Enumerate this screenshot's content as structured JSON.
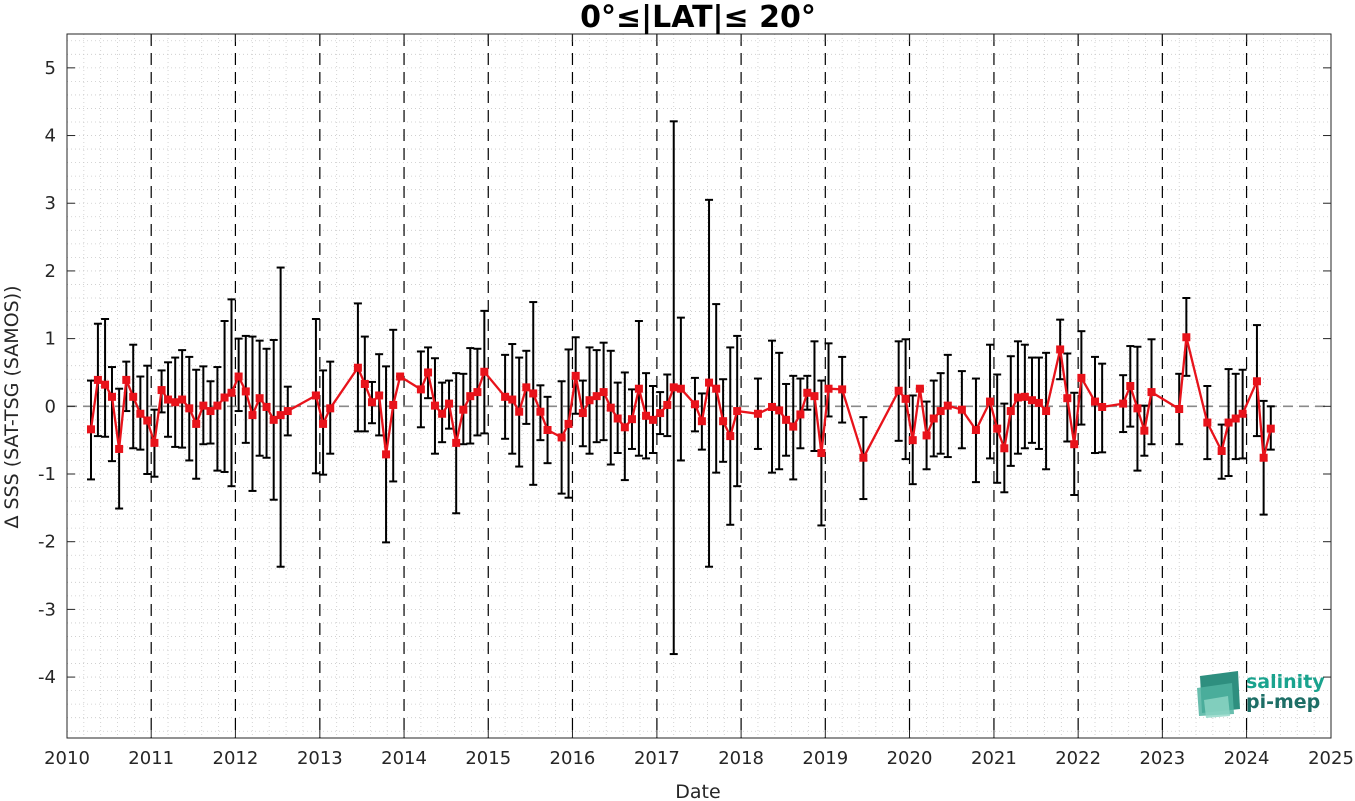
{
  "chart_data": {
    "type": "line",
    "title": "0°≤|LAT|≤ 20°",
    "xlabel": "Date",
    "ylabel": "Δ SSS (SAT-TSG (SAMOS))",
    "xlim": [
      "2010-01-01",
      "2025-01-01"
    ],
    "ylim": [
      -4.9,
      5.5
    ],
    "x_ticks": [
      "2010",
      "2011",
      "2012",
      "2013",
      "2014",
      "2015",
      "2016",
      "2017",
      "2018",
      "2019",
      "2020",
      "2021",
      "2022",
      "2023",
      "2024",
      "2025"
    ],
    "y_ticks": [
      "5",
      "4",
      "3",
      "2",
      "1",
      "0",
      "-1",
      "-2",
      "-3",
      "-4"
    ],
    "y_tick_values": [
      5,
      4,
      3,
      2,
      1,
      0,
      -1,
      -2,
      -3,
      -4
    ],
    "grid": "dotted minor grid",
    "year_boundaries": "dashed vertical lines at Jan 1 of each year",
    "zero_line": "dashed grey horizontal line at 0",
    "colors": {
      "series": "#e8131b",
      "errorbar": "#000000",
      "marker_fill": "#e8131b"
    },
    "series": [
      {
        "points": [
          {
            "x": "2010-04",
            "y": -0.34,
            "lo": -1.08,
            "hi": 0.38
          },
          {
            "x": "2010-05",
            "y": 0.39,
            "lo": -0.44,
            "hi": 1.22
          },
          {
            "x": "2010-06",
            "y": 0.32,
            "lo": -0.45,
            "hi": 1.29
          },
          {
            "x": "2010-07",
            "y": 0.14,
            "lo": -0.81,
            "hi": 0.58
          },
          {
            "x": "2010-08",
            "y": -0.63,
            "lo": -1.51,
            "hi": 0.26
          },
          {
            "x": "2010-09",
            "y": 0.39,
            "lo": -0.07,
            "hi": 0.66
          },
          {
            "x": "2010-10",
            "y": 0.14,
            "lo": -0.62,
            "hi": 0.91
          },
          {
            "x": "2010-11",
            "y": -0.11,
            "lo": -0.64,
            "hi": 0.44
          },
          {
            "x": "2010-12",
            "y": -0.21,
            "lo": -1.0,
            "hi": 0.6
          },
          {
            "x": "2011-01",
            "y": -0.54,
            "lo": -1.04,
            "hi": -0.05
          },
          {
            "x": "2011-02",
            "y": 0.24,
            "lo": -0.09,
            "hi": 0.53
          },
          {
            "x": "2011-03",
            "y": 0.1,
            "lo": -0.45,
            "hi": 0.65
          },
          {
            "x": "2011-04",
            "y": 0.06,
            "lo": -0.6,
            "hi": 0.72
          },
          {
            "x": "2011-05",
            "y": 0.1,
            "lo": -0.61,
            "hi": 0.83
          },
          {
            "x": "2011-06",
            "y": -0.03,
            "lo": -0.8,
            "hi": 0.73
          },
          {
            "x": "2011-07",
            "y": -0.26,
            "lo": -1.07,
            "hi": 0.54
          },
          {
            "x": "2011-08",
            "y": 0.01,
            "lo": -0.56,
            "hi": 0.59
          },
          {
            "x": "2011-09",
            "y": -0.07,
            "lo": -0.55,
            "hi": 0.37
          },
          {
            "x": "2011-10",
            "y": 0.01,
            "lo": -0.95,
            "hi": 0.58
          },
          {
            "x": "2011-11",
            "y": 0.13,
            "lo": -0.97,
            "hi": 1.26
          },
          {
            "x": "2011-12",
            "y": 0.2,
            "lo": -1.18,
            "hi": 1.58
          },
          {
            "x": "2012-01",
            "y": 0.44,
            "lo": -0.07,
            "hi": 1.0
          },
          {
            "x": "2012-02",
            "y": 0.22,
            "lo": -0.54,
            "hi": 1.04
          },
          {
            "x": "2012-03",
            "y": -0.13,
            "lo": -1.25,
            "hi": 1.03
          },
          {
            "x": "2012-04",
            "y": 0.12,
            "lo": -0.73,
            "hi": 0.97
          },
          {
            "x": "2012-05",
            "y": -0.01,
            "lo": -0.76,
            "hi": 0.85
          },
          {
            "x": "2012-06",
            "y": -0.2,
            "lo": -1.38,
            "hi": 0.98
          },
          {
            "x": "2012-07",
            "y": -0.13,
            "lo": -2.37,
            "hi": 2.05
          },
          {
            "x": "2012-08",
            "y": -0.07,
            "lo": -0.43,
            "hi": 0.29
          },
          {
            "x": "2012-12",
            "y": 0.16,
            "lo": -0.99,
            "hi": 1.29
          },
          {
            "x": "2013-01",
            "y": -0.26,
            "lo": -1.01,
            "hi": 0.53
          },
          {
            "x": "2013-02",
            "y": -0.03,
            "lo": -0.7,
            "hi": 0.66
          },
          {
            "x": "2013-06",
            "y": 0.57,
            "lo": -0.37,
            "hi": 1.52
          },
          {
            "x": "2013-07",
            "y": 0.33,
            "lo": -0.37,
            "hi": 1.03
          },
          {
            "x": "2013-08",
            "y": 0.06,
            "lo": -0.25,
            "hi": 0.36
          },
          {
            "x": "2013-09",
            "y": 0.16,
            "lo": -0.43,
            "hi": 0.77
          },
          {
            "x": "2013-10",
            "y": -0.71,
            "lo": -2.01,
            "hi": 0.59
          },
          {
            "x": "2013-11",
            "y": 0.02,
            "lo": -1.11,
            "hi": 1.13
          },
          {
            "x": "2013-12",
            "y": 0.44,
            "lo": 0.44,
            "hi": 0.44
          },
          {
            "x": "2014-03",
            "y": 0.25,
            "lo": -0.31,
            "hi": 0.81
          },
          {
            "x": "2014-04",
            "y": 0.5,
            "lo": 0.12,
            "hi": 0.87
          },
          {
            "x": "2014-05",
            "y": 0.01,
            "lo": -0.7,
            "hi": 0.71
          },
          {
            "x": "2014-06",
            "y": -0.11,
            "lo": -0.53,
            "hi": 0.35
          },
          {
            "x": "2014-07",
            "y": 0.04,
            "lo": -0.33,
            "hi": 0.38
          },
          {
            "x": "2014-08",
            "y": -0.54,
            "lo": -1.58,
            "hi": 0.49
          },
          {
            "x": "2014-09",
            "y": -0.05,
            "lo": -0.56,
            "hi": 0.48
          },
          {
            "x": "2014-10",
            "y": 0.15,
            "lo": -0.55,
            "hi": 0.86
          },
          {
            "x": "2014-11",
            "y": 0.21,
            "lo": -0.43,
            "hi": 0.85
          },
          {
            "x": "2014-12",
            "y": 0.51,
            "lo": -0.4,
            "hi": 1.41
          },
          {
            "x": "2015-03",
            "y": 0.14,
            "lo": -0.48,
            "hi": 0.76
          },
          {
            "x": "2015-04",
            "y": 0.1,
            "lo": -0.7,
            "hi": 0.92
          },
          {
            "x": "2015-05",
            "y": -0.08,
            "lo": -0.89,
            "hi": 0.72
          },
          {
            "x": "2015-06",
            "y": 0.28,
            "lo": -0.26,
            "hi": 0.82
          },
          {
            "x": "2015-07",
            "y": 0.19,
            "lo": -1.16,
            "hi": 1.54
          },
          {
            "x": "2015-08",
            "y": -0.08,
            "lo": -0.5,
            "hi": 0.31
          },
          {
            "x": "2015-09",
            "y": -0.35,
            "lo": -0.84,
            "hi": 0.14
          },
          {
            "x": "2015-11",
            "y": -0.46,
            "lo": -1.29,
            "hi": 0.37
          },
          {
            "x": "2015-12",
            "y": -0.26,
            "lo": -1.35,
            "hi": 0.84
          },
          {
            "x": "2016-01",
            "y": 0.45,
            "lo": -0.11,
            "hi": 1.02
          },
          {
            "x": "2016-02",
            "y": -0.1,
            "lo": -0.59,
            "hi": 0.38
          },
          {
            "x": "2016-03",
            "y": 0.09,
            "lo": -0.7,
            "hi": 0.87
          },
          {
            "x": "2016-04",
            "y": 0.15,
            "lo": -0.53,
            "hi": 0.83
          },
          {
            "x": "2016-05",
            "y": 0.21,
            "lo": -0.5,
            "hi": 0.94
          },
          {
            "x": "2016-06",
            "y": -0.02,
            "lo": -0.86,
            "hi": 0.82
          },
          {
            "x": "2016-07",
            "y": -0.18,
            "lo": -0.69,
            "hi": 0.35
          },
          {
            "x": "2016-08",
            "y": -0.31,
            "lo": -1.09,
            "hi": 0.5
          },
          {
            "x": "2016-09",
            "y": -0.19,
            "lo": -0.63,
            "hi": 0.25
          },
          {
            "x": "2016-10",
            "y": 0.26,
            "lo": -0.73,
            "hi": 1.26
          },
          {
            "x": "2016-11",
            "y": -0.14,
            "lo": -0.77,
            "hi": 0.49
          },
          {
            "x": "2016-12",
            "y": -0.2,
            "lo": -0.69,
            "hi": 0.3
          },
          {
            "x": "2017-01",
            "y": -0.1,
            "lo": -0.41,
            "hi": 0.21
          },
          {
            "x": "2017-02",
            "y": 0.02,
            "lo": -0.44,
            "hi": 0.47
          },
          {
            "x": "2017-03",
            "y": 0.28,
            "lo": -3.66,
            "hi": 4.21
          },
          {
            "x": "2017-04",
            "y": 0.26,
            "lo": -0.8,
            "hi": 1.31
          },
          {
            "x": "2017-06",
            "y": 0.03,
            "lo": -0.37,
            "hi": 0.42
          },
          {
            "x": "2017-07",
            "y": -0.22,
            "lo": -0.64,
            "hi": 0.19
          },
          {
            "x": "2017-08",
            "y": 0.35,
            "lo": -2.37,
            "hi": 3.05
          },
          {
            "x": "2017-09",
            "y": 0.26,
            "lo": -0.98,
            "hi": 1.51
          },
          {
            "x": "2017-10",
            "y": -0.22,
            "lo": -0.82,
            "hi": 0.4
          },
          {
            "x": "2017-11",
            "y": -0.44,
            "lo": -1.75,
            "hi": 0.87
          },
          {
            "x": "2017-12",
            "y": -0.07,
            "lo": -1.18,
            "hi": 1.04
          },
          {
            "x": "2018-03",
            "y": -0.11,
            "lo": -0.63,
            "hi": 0.41
          },
          {
            "x": "2018-05",
            "y": -0.01,
            "lo": -0.98,
            "hi": 0.97
          },
          {
            "x": "2018-06",
            "y": -0.06,
            "lo": -0.93,
            "hi": 0.79
          },
          {
            "x": "2018-07",
            "y": -0.2,
            "lo": -0.73,
            "hi": 0.33
          },
          {
            "x": "2018-08",
            "y": -0.3,
            "lo": -1.08,
            "hi": 0.45
          },
          {
            "x": "2018-09",
            "y": -0.12,
            "lo": -0.62,
            "hi": 0.41
          },
          {
            "x": "2018-10",
            "y": 0.2,
            "lo": -0.05,
            "hi": 0.45
          },
          {
            "x": "2018-11",
            "y": 0.15,
            "lo": -0.66,
            "hi": 0.96
          },
          {
            "x": "2018-12",
            "y": -0.69,
            "lo": -1.76,
            "hi": 0.38
          },
          {
            "x": "2019-01",
            "y": 0.26,
            "lo": -0.15,
            "hi": 0.93
          },
          {
            "x": "2019-03",
            "y": 0.25,
            "lo": -0.24,
            "hi": 0.73
          },
          {
            "x": "2019-06",
            "y": -0.76,
            "lo": -1.37,
            "hi": -0.16
          },
          {
            "x": "2019-11",
            "y": 0.23,
            "lo": -0.51,
            "hi": 0.96
          },
          {
            "x": "2019-12",
            "y": 0.11,
            "lo": -0.78,
            "hi": 0.99
          },
          {
            "x": "2020-01",
            "y": -0.5,
            "lo": -1.15,
            "hi": 0.16
          },
          {
            "x": "2020-02",
            "y": 0.26,
            "lo": 0.26,
            "hi": 0.26
          },
          {
            "x": "2020-03",
            "y": -0.43,
            "lo": -0.93,
            "hi": 0.07
          },
          {
            "x": "2020-04",
            "y": -0.18,
            "lo": -0.74,
            "hi": 0.38
          },
          {
            "x": "2020-05",
            "y": -0.07,
            "lo": -0.7,
            "hi": 0.49
          },
          {
            "x": "2020-06",
            "y": 0.01,
            "lo": -0.75,
            "hi": 0.76
          },
          {
            "x": "2020-08",
            "y": -0.05,
            "lo": -0.62,
            "hi": 0.52
          },
          {
            "x": "2020-10",
            "y": -0.35,
            "lo": -1.12,
            "hi": 0.41
          },
          {
            "x": "2020-12",
            "y": 0.07,
            "lo": -0.77,
            "hi": 0.91
          },
          {
            "x": "2021-01",
            "y": -0.33,
            "lo": -1.13,
            "hi": 0.47
          },
          {
            "x": "2021-02",
            "y": -0.62,
            "lo": -1.27,
            "hi": 0.04
          },
          {
            "x": "2021-03",
            "y": -0.07,
            "lo": -0.88,
            "hi": 0.74
          },
          {
            "x": "2021-04",
            "y": 0.13,
            "lo": -0.7,
            "hi": 0.96
          },
          {
            "x": "2021-05",
            "y": 0.14,
            "lo": -0.62,
            "hi": 0.91
          },
          {
            "x": "2021-06",
            "y": 0.09,
            "lo": -0.54,
            "hi": 0.72
          },
          {
            "x": "2021-07",
            "y": 0.05,
            "lo": -0.63,
            "hi": 0.72
          },
          {
            "x": "2021-08",
            "y": -0.07,
            "lo": -0.93,
            "hi": 0.79
          },
          {
            "x": "2021-10",
            "y": 0.84,
            "lo": 0.4,
            "hi": 1.28
          },
          {
            "x": "2021-11",
            "y": 0.12,
            "lo": -0.52,
            "hi": 0.78
          },
          {
            "x": "2021-12",
            "y": -0.56,
            "lo": -1.31,
            "hi": 0.2
          },
          {
            "x": "2022-01",
            "y": 0.42,
            "lo": -0.27,
            "hi": 1.11
          },
          {
            "x": "2022-03",
            "y": 0.07,
            "lo": -0.69,
            "hi": 0.73
          },
          {
            "x": "2022-04",
            "y": -0.01,
            "lo": -0.68,
            "hi": 0.63
          },
          {
            "x": "2022-07",
            "y": 0.04,
            "lo": -0.38,
            "hi": 0.46
          },
          {
            "x": "2022-08",
            "y": 0.3,
            "lo": -0.3,
            "hi": 0.89
          },
          {
            "x": "2022-09",
            "y": -0.03,
            "lo": -0.95,
            "hi": 0.88
          },
          {
            "x": "2022-10",
            "y": -0.36,
            "lo": -0.73,
            "hi": 0.01
          },
          {
            "x": "2022-11",
            "y": 0.21,
            "lo": -0.56,
            "hi": 0.99
          },
          {
            "x": "2023-03",
            "y": -0.04,
            "lo": -0.56,
            "hi": 0.48
          },
          {
            "x": "2023-04",
            "y": 1.02,
            "lo": 0.45,
            "hi": 1.6
          },
          {
            "x": "2023-07",
            "y": -0.24,
            "lo": -0.78,
            "hi": 0.3
          },
          {
            "x": "2023-09",
            "y": -0.66,
            "lo": -1.07,
            "hi": -0.27
          },
          {
            "x": "2023-10",
            "y": -0.24,
            "lo": -1.03,
            "hi": 0.55
          },
          {
            "x": "2023-11",
            "y": -0.18,
            "lo": -0.78,
            "hi": 0.48
          },
          {
            "x": "2023-12",
            "y": -0.11,
            "lo": -0.77,
            "hi": 0.54
          },
          {
            "x": "2024-02",
            "y": 0.37,
            "lo": -0.44,
            "hi": 1.2
          },
          {
            "x": "2024-03",
            "y": -0.76,
            "lo": -1.6,
            "hi": 0.08
          },
          {
            "x": "2024-04",
            "y": -0.33,
            "lo": -0.64,
            "hi": 0.0
          }
        ]
      }
    ]
  },
  "logo": {
    "line1": "salinity",
    "line2": "pi-mep"
  }
}
